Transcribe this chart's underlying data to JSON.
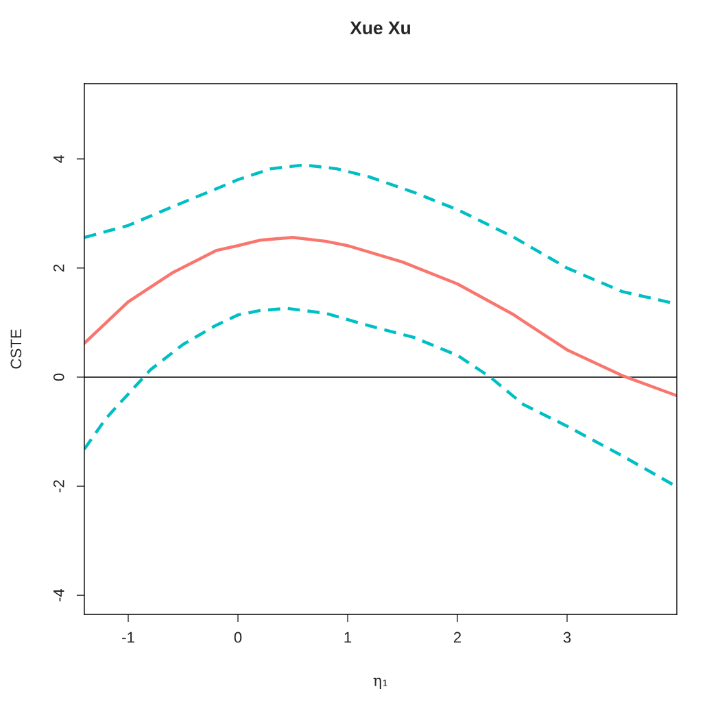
{
  "chart_data": {
    "type": "line",
    "title": "Xue Xu",
    "xlabel": "η₁",
    "ylabel": "CSTE",
    "xlim": [
      -1.4,
      4.0
    ],
    "ylim": [
      -4.35,
      5.38
    ],
    "xticks": [
      -1,
      0,
      1,
      2,
      3
    ],
    "yticks": [
      -4,
      -2,
      0,
      2,
      4
    ],
    "grid": false,
    "series": [
      {
        "color": "#f8766d",
        "line_style": "solid",
        "x": [
          -1.4,
          -1.0,
          -0.6,
          -0.2,
          0,
          0.2,
          0.5,
          0.8,
          1.0,
          1.5,
          2.0,
          2.5,
          3.0,
          3.5,
          4.0
        ],
        "values": [
          0.62,
          1.38,
          1.91,
          2.32,
          2.41,
          2.51,
          2.56,
          2.49,
          2.41,
          2.11,
          1.71,
          1.16,
          0.5,
          0.03,
          -0.34
        ]
      },
      {
        "color": "#00bfc4",
        "line_style": "dashed",
        "x": [
          -1.4,
          -1.0,
          -0.6,
          -0.2,
          0,
          0.3,
          0.6,
          0.9,
          1.2,
          1.6,
          2.0,
          2.5,
          3.0,
          3.5,
          4.0
        ],
        "values": [
          2.56,
          2.78,
          3.12,
          3.45,
          3.62,
          3.82,
          3.89,
          3.82,
          3.67,
          3.39,
          3.07,
          2.58,
          2.0,
          1.57,
          1.34
        ]
      },
      {
        "color": "#00bfc4",
        "line_style": "dashed",
        "x": [
          -1.4,
          -1.2,
          -1.0,
          -0.8,
          -0.5,
          -0.2,
          0,
          0.2,
          0.45,
          0.8,
          1.2,
          1.6,
          2.0,
          2.3,
          2.6,
          3.0,
          3.5,
          4.0
        ],
        "values": [
          -1.32,
          -0.75,
          -0.31,
          0.13,
          0.6,
          0.95,
          1.14,
          1.22,
          1.26,
          1.17,
          0.94,
          0.73,
          0.4,
          0.0,
          -0.5,
          -0.9,
          -1.44,
          -2.01
        ]
      }
    ],
    "ref_lines": [
      {
        "axis": "y",
        "value": 0,
        "color": "#000000"
      }
    ]
  }
}
